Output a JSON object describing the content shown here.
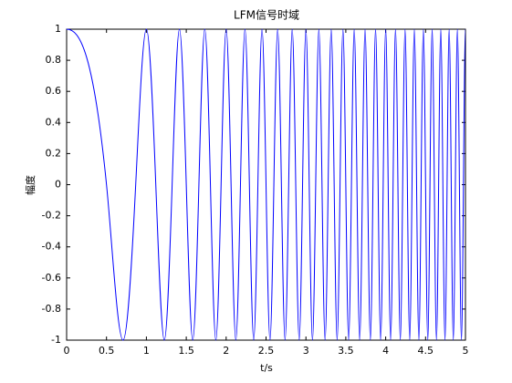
{
  "chart_data": {
    "type": "line",
    "title": "LFM信号时域",
    "xlabel": "t/s",
    "ylabel": "幅度",
    "color": "#0000ff",
    "x": [
      0,
      0.5,
      0.7071,
      0.866,
      1,
      1.118,
      1.2247,
      1.3229,
      1.4142,
      1.5,
      1.5811,
      1.6583,
      1.7321,
      1.8028,
      1.8708,
      1.9365,
      2,
      2.0616,
      2.1213,
      2.1794,
      2.2361,
      2.2913,
      2.3452,
      2.3979,
      2.4495,
      2.5,
      2.5495,
      2.5981,
      2.6458,
      2.6926,
      2.7386,
      2.7839,
      2.8284,
      2.8723,
      2.9155,
      2.958,
      3,
      3.0414,
      3.0822,
      3.1225,
      3.1623,
      3.2016,
      3.2404,
      3.2787,
      3.3166,
      3.3541,
      3.3912,
      3.4278,
      3.4641,
      3.5,
      3.5355,
      3.5707,
      3.6056,
      3.6401,
      3.6742,
      3.7081,
      3.7417,
      3.7749,
      3.8079,
      3.8406,
      3.873,
      3.9051,
      3.937,
      3.9686,
      4,
      4.0311,
      4.062,
      4.0927,
      4.1231,
      4.1533,
      4.1833,
      4.2131,
      4.2426,
      4.272,
      4.3012,
      4.3301,
      4.3589,
      4.3875,
      4.4159,
      4.4441,
      4.4721,
      4.5,
      4.5277,
      4.5552,
      4.5826,
      4.6098,
      4.6368,
      4.6637,
      4.6904,
      4.717,
      4.7434,
      4.7697,
      4.7958,
      4.8218,
      4.8477,
      4.8734,
      4.899,
      4.9244,
      4.9497,
      4.9749,
      5
    ],
    "values": [
      1,
      0,
      -1,
      0,
      1,
      0,
      -1,
      0,
      1,
      0,
      -1,
      0,
      1,
      0,
      -1,
      0,
      1,
      0,
      -1,
      0,
      1,
      0,
      -1,
      0,
      1,
      0,
      -1,
      0,
      1,
      0,
      -1,
      0,
      1,
      0,
      -1,
      0,
      1,
      0,
      -1,
      0,
      1,
      0,
      -1,
      0,
      1,
      0,
      -1,
      0,
      1,
      0,
      -1,
      0,
      1,
      0,
      -1,
      0,
      1,
      0,
      -1,
      0,
      1,
      0,
      -1,
      0,
      1,
      0,
      -1,
      0,
      1,
      0,
      -1,
      0,
      1,
      0,
      -1,
      0,
      1,
      0,
      -1,
      0,
      1,
      0,
      -1,
      0,
      1,
      0,
      -1,
      0,
      1,
      0,
      -1,
      0,
      1,
      0,
      -1,
      0,
      1,
      0,
      -1,
      0,
      1
    ],
    "xlim": [
      0,
      5
    ],
    "xticks": [
      0,
      0.5,
      1,
      1.5,
      2,
      2.5,
      3,
      3.5,
      4,
      4.5,
      5
    ],
    "ylim": [
      -1,
      1
    ],
    "yticks": [
      -1,
      -0.8,
      -0.6,
      -0.4,
      -0.2,
      0,
      0.2,
      0.4,
      0.6,
      0.8,
      1
    ]
  }
}
